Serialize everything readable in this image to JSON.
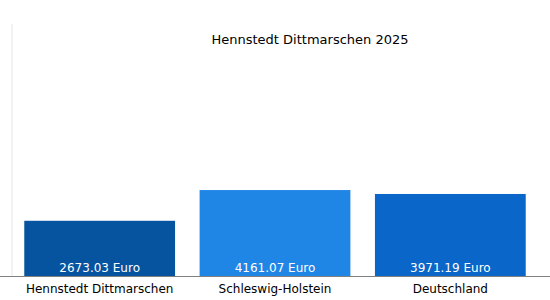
{
  "chart_data": {
    "type": "bar",
    "title": "Hennstedt Dittmarschen 2025",
    "categories": [
      "Hennstedt Dittmarschen",
      "Schleswig-Holstein",
      "Deutschland"
    ],
    "values": [
      2673.03,
      4161.07,
      3971.19
    ],
    "value_labels": [
      "2673.03 Euro",
      "4161.07 Euro",
      "3971.19 Euro"
    ],
    "colors": [
      "#0653a0",
      "#1f86e6",
      "#0a66c8"
    ],
    "ylim": [
      0,
      12200
    ],
    "data_labels": true,
    "tick_labels": "x",
    "grid": false
  }
}
